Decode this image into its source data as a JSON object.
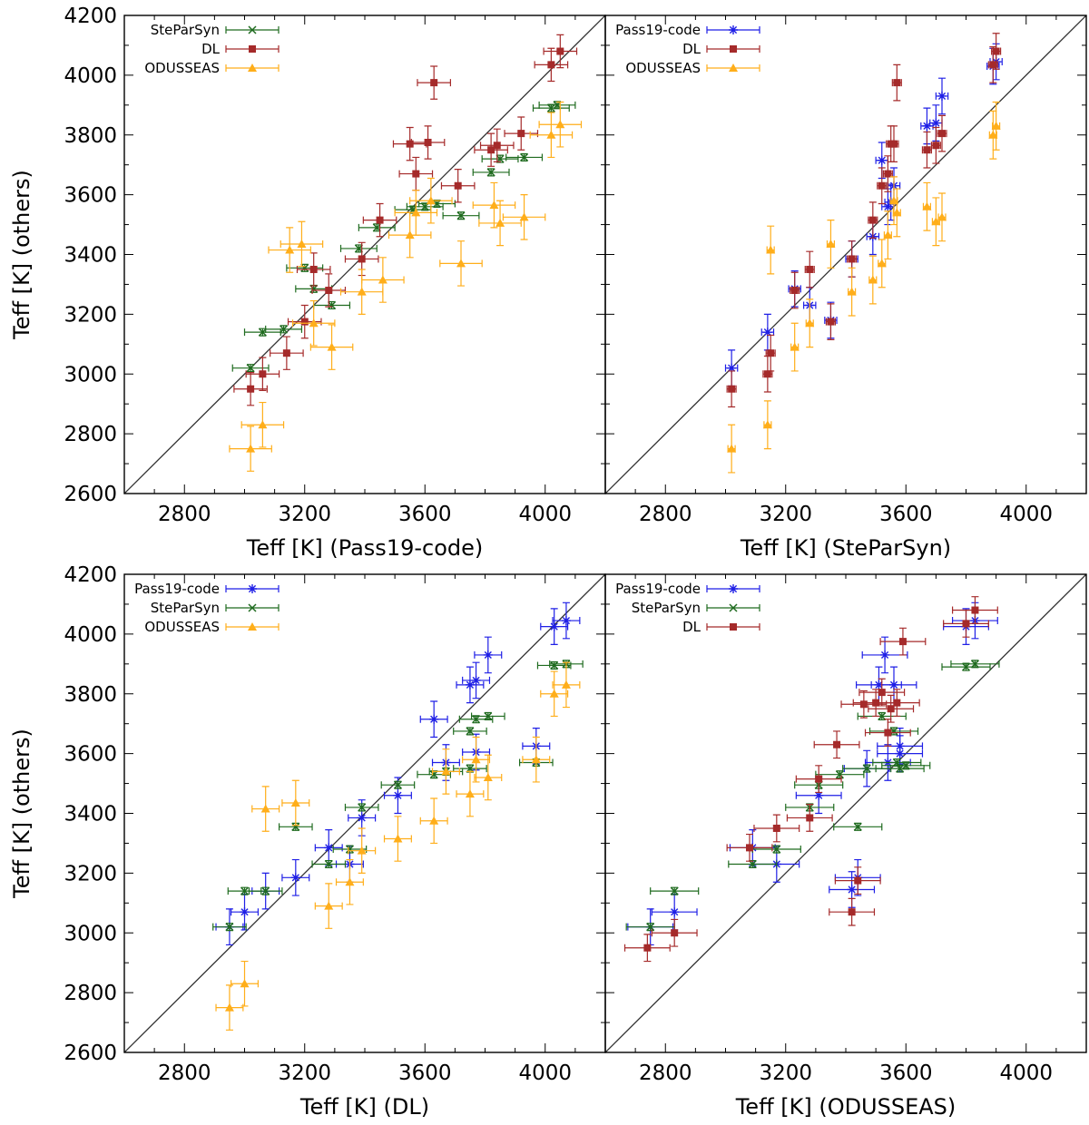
{
  "colors": {
    "Pass19-code": "#1f1fe6",
    "SteParSyn": "#1f6b1f",
    "DL": "#a52a2a",
    "ODUSSEAS": "#ffae1a",
    "diagonal": "#333333"
  },
  "chart_data": [
    {
      "type": "scatter",
      "panel": "top-left",
      "xlabel": "Teff [K] (Pass19-code)",
      "ylabel": "Teff [K] (others)",
      "xlim": [
        2600,
        4200
      ],
      "ylim": [
        2600,
        4200
      ],
      "xticks": [
        2800,
        3200,
        3600,
        4000
      ],
      "yticks": [
        2600,
        2800,
        3000,
        3200,
        3400,
        3600,
        3800,
        4000,
        4200
      ],
      "legend_position": "top-left",
      "series": [
        {
          "name": "SteParSyn",
          "marker": "x",
          "ex": 60,
          "ey": 12,
          "points": [
            [
              3020,
              3020
            ],
            [
              3060,
              3140
            ],
            [
              3130,
              3150
            ],
            [
              3200,
              3355
            ],
            [
              3230,
              3285
            ],
            [
              3290,
              3230
            ],
            [
              3380,
              3420
            ],
            [
              3440,
              3490
            ],
            [
              3560,
              3550
            ],
            [
              3600,
              3560
            ],
            [
              3640,
              3570
            ],
            [
              3720,
              3530
            ],
            [
              3820,
              3675
            ],
            [
              3850,
              3720
            ],
            [
              3930,
              3725
            ],
            [
              4020,
              3890
            ],
            [
              4040,
              3900
            ]
          ]
        },
        {
          "name": "DL",
          "marker": "square",
          "ex": 55,
          "ey": 55,
          "points": [
            [
              3020,
              2950
            ],
            [
              3060,
              3000
            ],
            [
              3140,
              3070
            ],
            [
              3200,
              3175
            ],
            [
              3230,
              3350
            ],
            [
              3280,
              3280
            ],
            [
              3390,
              3385
            ],
            [
              3450,
              3515
            ],
            [
              3550,
              3770
            ],
            [
              3570,
              3670
            ],
            [
              3610,
              3775
            ],
            [
              3630,
              3975
            ],
            [
              3710,
              3630
            ],
            [
              3820,
              3750
            ],
            [
              3840,
              3765
            ],
            [
              3920,
              3805
            ],
            [
              4020,
              4035
            ],
            [
              4050,
              4080
            ]
          ]
        },
        {
          "name": "ODUSSEAS",
          "marker": "triangle",
          "ex": 70,
          "ey": 75,
          "points": [
            [
              3020,
              2750
            ],
            [
              3060,
              2830
            ],
            [
              3150,
              3415
            ],
            [
              3190,
              3435
            ],
            [
              3230,
              3170
            ],
            [
              3290,
              3090
            ],
            [
              3390,
              3275
            ],
            [
              3460,
              3315
            ],
            [
              3550,
              3465
            ],
            [
              3570,
              3540
            ],
            [
              3620,
              3580
            ],
            [
              3720,
              3370
            ],
            [
              3830,
              3565
            ],
            [
              3850,
              3505
            ],
            [
              3930,
              3525
            ],
            [
              4020,
              3800
            ],
            [
              4050,
              3835
            ]
          ]
        }
      ]
    },
    {
      "type": "scatter",
      "panel": "top-right",
      "xlabel": "Teff [K] (SteParSyn)",
      "ylabel": "",
      "xlim": [
        2600,
        4200
      ],
      "ylim": [
        2600,
        4200
      ],
      "xticks": [
        2800,
        3200,
        3600,
        4000
      ],
      "yticks": [],
      "legend_position": "top-left",
      "series": [
        {
          "name": "Pass19-code",
          "marker": "asterisk",
          "ex": 20,
          "ey": 60,
          "points": [
            [
              3020,
              3020
            ],
            [
              3140,
              3140
            ],
            [
              3230,
              3285
            ],
            [
              3280,
              3230
            ],
            [
              3350,
              3180
            ],
            [
              3420,
              3385
            ],
            [
              3490,
              3460
            ],
            [
              3520,
              3715
            ],
            [
              3540,
              3560
            ],
            [
              3550,
              3575
            ],
            [
              3560,
              3630
            ],
            [
              3670,
              3830
            ],
            [
              3700,
              3840
            ],
            [
              3720,
              3930
            ],
            [
              3890,
              4030
            ],
            [
              3900,
              4045
            ]
          ]
        },
        {
          "name": "DL",
          "marker": "square",
          "ex": 15,
          "ey": 60,
          "points": [
            [
              3020,
              2950
            ],
            [
              3140,
              3000
            ],
            [
              3150,
              3070
            ],
            [
              3230,
              3280
            ],
            [
              3280,
              3350
            ],
            [
              3350,
              3175
            ],
            [
              3420,
              3385
            ],
            [
              3490,
              3515
            ],
            [
              3520,
              3630
            ],
            [
              3540,
              3670
            ],
            [
              3550,
              3770
            ],
            [
              3560,
              3770
            ],
            [
              3570,
              3975
            ],
            [
              3670,
              3750
            ],
            [
              3700,
              3765
            ],
            [
              3720,
              3805
            ],
            [
              3890,
              4035
            ],
            [
              3900,
              4080
            ]
          ]
        },
        {
          "name": "ODUSSEAS",
          "marker": "triangle",
          "ex": 12,
          "ey": 80,
          "points": [
            [
              3020,
              2750
            ],
            [
              3140,
              2830
            ],
            [
              3150,
              3415
            ],
            [
              3230,
              3090
            ],
            [
              3280,
              3170
            ],
            [
              3350,
              3435
            ],
            [
              3420,
              3275
            ],
            [
              3490,
              3315
            ],
            [
              3520,
              3370
            ],
            [
              3540,
              3465
            ],
            [
              3560,
              3580
            ],
            [
              3570,
              3540
            ],
            [
              3670,
              3560
            ],
            [
              3700,
              3510
            ],
            [
              3720,
              3525
            ],
            [
              3890,
              3800
            ],
            [
              3900,
              3830
            ]
          ]
        }
      ]
    },
    {
      "type": "scatter",
      "panel": "bottom-left",
      "xlabel": "Teff [K] (DL)",
      "ylabel": "Teff [K] (others)",
      "xlim": [
        2600,
        4200
      ],
      "ylim": [
        2600,
        4200
      ],
      "xticks": [
        2800,
        3200,
        3600,
        4000
      ],
      "yticks": [
        2600,
        2800,
        3000,
        3200,
        3400,
        3600,
        3800,
        4000,
        4200
      ],
      "legend_position": "top-left",
      "series": [
        {
          "name": "Pass19-code",
          "marker": "asterisk",
          "ex": 45,
          "ey": 60,
          "points": [
            [
              2950,
              3020
            ],
            [
              3000,
              3070
            ],
            [
              3070,
              3140
            ],
            [
              3170,
              3185
            ],
            [
              3280,
              3285
            ],
            [
              3350,
              3230
            ],
            [
              3390,
              3385
            ],
            [
              3510,
              3460
            ],
            [
              3630,
              3715
            ],
            [
              3670,
              3570
            ],
            [
              3750,
              3830
            ],
            [
              3770,
              3845
            ],
            [
              3770,
              3605
            ],
            [
              3810,
              3930
            ],
            [
              3970,
              3625
            ],
            [
              4030,
              4025
            ],
            [
              4070,
              4045
            ]
          ]
        },
        {
          "name": "SteParSyn",
          "marker": "x",
          "ex": 55,
          "ey": 12,
          "points": [
            [
              2950,
              3020
            ],
            [
              3000,
              3140
            ],
            [
              3070,
              3140
            ],
            [
              3170,
              3355
            ],
            [
              3280,
              3230
            ],
            [
              3350,
              3280
            ],
            [
              3390,
              3420
            ],
            [
              3510,
              3495
            ],
            [
              3630,
              3530
            ],
            [
              3670,
              3540
            ],
            [
              3750,
              3550
            ],
            [
              3750,
              3675
            ],
            [
              3770,
              3715
            ],
            [
              3810,
              3725
            ],
            [
              3970,
              3570
            ],
            [
              4030,
              3895
            ],
            [
              4070,
              3900
            ]
          ]
        },
        {
          "name": "ODUSSEAS",
          "marker": "triangle",
          "ex": 45,
          "ey": 75,
          "points": [
            [
              2950,
              2750
            ],
            [
              3000,
              2830
            ],
            [
              3070,
              3415
            ],
            [
              3170,
              3435
            ],
            [
              3280,
              3090
            ],
            [
              3350,
              3170
            ],
            [
              3390,
              3275
            ],
            [
              3510,
              3315
            ],
            [
              3630,
              3375
            ],
            [
              3670,
              3540
            ],
            [
              3750,
              3465
            ],
            [
              3770,
              3580
            ],
            [
              3810,
              3520
            ],
            [
              3970,
              3580
            ],
            [
              4030,
              3800
            ],
            [
              4070,
              3830
            ]
          ]
        }
      ]
    },
    {
      "type": "scatter",
      "panel": "bottom-right",
      "xlabel": "Teff [K] (ODUSSEAS)",
      "ylabel": "",
      "xlim": [
        2600,
        4200
      ],
      "ylim": [
        2600,
        4200
      ],
      "xticks": [
        2800,
        3200,
        3600,
        4000
      ],
      "yticks": [],
      "legend_position": "top-left",
      "series": [
        {
          "name": "Pass19-code",
          "marker": "asterisk",
          "ex": 75,
          "ey": 60,
          "points": [
            [
              2750,
              3020
            ],
            [
              2830,
              3070
            ],
            [
              3090,
              3285
            ],
            [
              3170,
              3230
            ],
            [
              3310,
              3460
            ],
            [
              3420,
              3145
            ],
            [
              3440,
              3185
            ],
            [
              3470,
              3550
            ],
            [
              3510,
              3830
            ],
            [
              3530,
              3930
            ],
            [
              3540,
              3570
            ],
            [
              3560,
              3830
            ],
            [
              3580,
              3600
            ],
            [
              3580,
              3625
            ],
            [
              3800,
              4025
            ],
            [
              3830,
              4045
            ]
          ]
        },
        {
          "name": "SteParSyn",
          "marker": "x",
          "ex": 80,
          "ey": 12,
          "points": [
            [
              2750,
              3020
            ],
            [
              2830,
              3140
            ],
            [
              3090,
              3230
            ],
            [
              3170,
              3280
            ],
            [
              3280,
              3420
            ],
            [
              3310,
              3495
            ],
            [
              3380,
              3530
            ],
            [
              3440,
              3355
            ],
            [
              3470,
              3550
            ],
            [
              3520,
              3725
            ],
            [
              3560,
              3675
            ],
            [
              3570,
              3570
            ],
            [
              3580,
              3550
            ],
            [
              3600,
              3560
            ],
            [
              3800,
              3890
            ],
            [
              3830,
              3900
            ]
          ]
        },
        {
          "name": "DL",
          "marker": "square",
          "ex": 75,
          "ey": 45,
          "points": [
            [
              2740,
              2950
            ],
            [
              2830,
              3000
            ],
            [
              3080,
              3285
            ],
            [
              3170,
              3350
            ],
            [
              3280,
              3385
            ],
            [
              3310,
              3515
            ],
            [
              3370,
              3630
            ],
            [
              3420,
              3070
            ],
            [
              3440,
              3175
            ],
            [
              3460,
              3765
            ],
            [
              3500,
              3770
            ],
            [
              3520,
              3805
            ],
            [
              3540,
              3670
            ],
            [
              3550,
              3750
            ],
            [
              3570,
              3770
            ],
            [
              3590,
              3975
            ],
            [
              3800,
              4035
            ],
            [
              3830,
              4080
            ]
          ]
        }
      ]
    }
  ]
}
